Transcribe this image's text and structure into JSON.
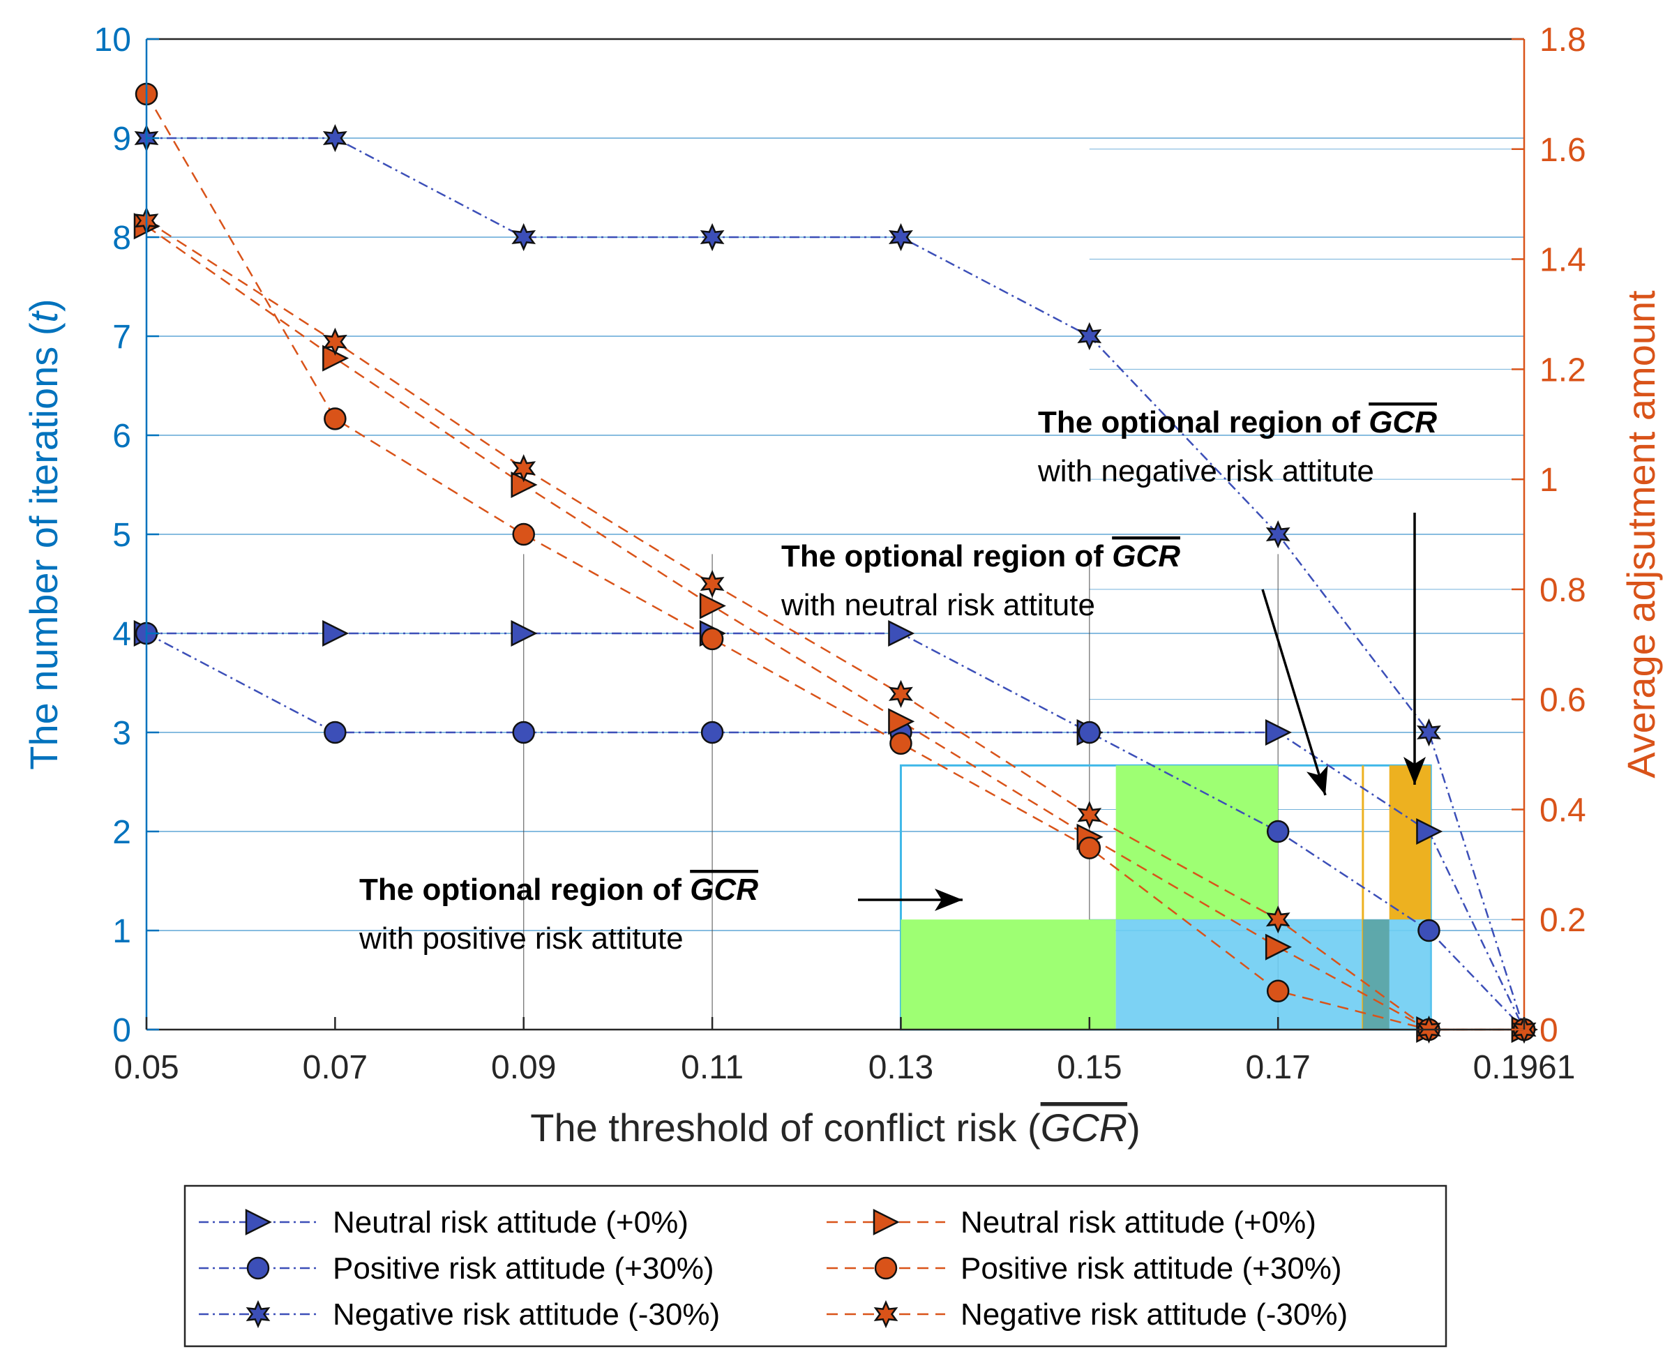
{
  "chart_data": {
    "type": "line",
    "xlabel_prefix": "The threshold of conflict risk (",
    "xlabel_var": "GCR",
    "xlabel_suffix": ")",
    "ylabel_left": "The number of iterations (",
    "ylabel_left_var": "t",
    "ylabel_left_suffix": ")",
    "ylabel_right": "Average adjsutment amount",
    "x_ticks": [
      "0.05",
      "0.07",
      "0.09",
      "0.11",
      "0.13",
      "0.15",
      "0.17",
      "0.1961"
    ],
    "x_tick_values": [
      0.05,
      0.07,
      0.09,
      0.11,
      0.13,
      0.15,
      0.17,
      0.1961
    ],
    "xlim": [
      0.05,
      0.1961
    ],
    "ylim_left": [
      0,
      10
    ],
    "ylim_right": [
      0,
      1.8
    ],
    "left_ticks": [
      "0",
      "1",
      "2",
      "3",
      "4",
      "5",
      "6",
      "7",
      "8",
      "9",
      "10"
    ],
    "right_ticks": [
      "0",
      "0.2",
      "0.4",
      "0.6",
      "0.8",
      "1",
      "1.2",
      "1.4",
      "1.6",
      "1.8"
    ],
    "colors": {
      "left_axis": "#0072BD",
      "right_axis": "#D95319",
      "blue_series": "#3C4FB8",
      "orange_series": "#D95319",
      "green_region": "#9EFF73",
      "blue_region": "#6ECDF3",
      "orange_region": "#EDB120"
    },
    "series_left": [
      {
        "name": "Neutral risk attitude (+0%)",
        "marker": "triangle-right",
        "x": [
          0.05,
          0.07,
          0.09,
          0.11,
          0.13,
          0.15,
          0.17,
          0.186,
          0.1961
        ],
        "y": [
          4,
          4,
          4,
          4,
          4,
          3,
          3,
          2,
          0
        ]
      },
      {
        "name": "Positive risk attitude (+30%)",
        "marker": "circle",
        "x": [
          0.05,
          0.07,
          0.09,
          0.11,
          0.13,
          0.15,
          0.17,
          0.186,
          0.1961
        ],
        "y": [
          4,
          3,
          3,
          3,
          3,
          3,
          2,
          1,
          0
        ]
      },
      {
        "name": "Negative risk attitude (-30%)",
        "marker": "hexagram",
        "x": [
          0.05,
          0.07,
          0.09,
          0.11,
          0.13,
          0.15,
          0.17,
          0.186,
          0.1961
        ],
        "y": [
          9,
          9,
          8,
          8,
          8,
          7,
          5,
          3,
          0
        ]
      }
    ],
    "series_right": [
      {
        "name": "Neutral risk attitude (+0%)",
        "marker": "triangle-right",
        "x": [
          0.05,
          0.07,
          0.09,
          0.11,
          0.13,
          0.15,
          0.17,
          0.186,
          0.1961
        ],
        "y": [
          1.46,
          1.22,
          0.99,
          0.77,
          0.56,
          0.35,
          0.15,
          0.0,
          0.0
        ]
      },
      {
        "name": "Positive risk attitude (+30%)",
        "marker": "circle",
        "x": [
          0.05,
          0.07,
          0.09,
          0.11,
          0.13,
          0.15,
          0.17,
          0.186,
          0.1961
        ],
        "y": [
          1.7,
          1.11,
          0.9,
          0.71,
          0.52,
          0.33,
          0.07,
          0.0,
          0.0
        ]
      },
      {
        "name": "Negative risk attitude (-30%)",
        "marker": "hexagram",
        "x": [
          0.05,
          0.07,
          0.09,
          0.11,
          0.13,
          0.15,
          0.17,
          0.186,
          0.1961
        ],
        "y": [
          1.47,
          1.25,
          1.02,
          0.81,
          0.61,
          0.39,
          0.2,
          0.0,
          0.0
        ]
      }
    ],
    "regions": [
      {
        "name": "positive",
        "x": [
          0.13,
          0.1528
        ],
        "y_right": [
          0,
          0.2
        ],
        "color": "green"
      },
      {
        "name": "neutral",
        "x": [
          0.1528,
          0.17
        ],
        "y_right": [
          0.2,
          0.48
        ],
        "color": "green"
      },
      {
        "name": "negative",
        "x": [
          0.1818,
          0.1862
        ],
        "y_right": [
          0.2,
          0.48
        ],
        "color": "orange"
      },
      {
        "name": "overlap",
        "x": [
          0.1528,
          0.1862
        ],
        "y_right": [
          0,
          0.2
        ],
        "color": "blue"
      }
    ],
    "annotations": [
      {
        "bold": "The optional region of ",
        "var": "GCR",
        "line2": "with positive risk attitute"
      },
      {
        "bold": "The optional region of ",
        "var": "GCR",
        "line2": "with neutral risk attitute"
      },
      {
        "bold": "The optional region of ",
        "var": "GCR",
        "line2": "with negative risk attitute"
      }
    ],
    "grid": true,
    "legend_position": "bottom"
  }
}
